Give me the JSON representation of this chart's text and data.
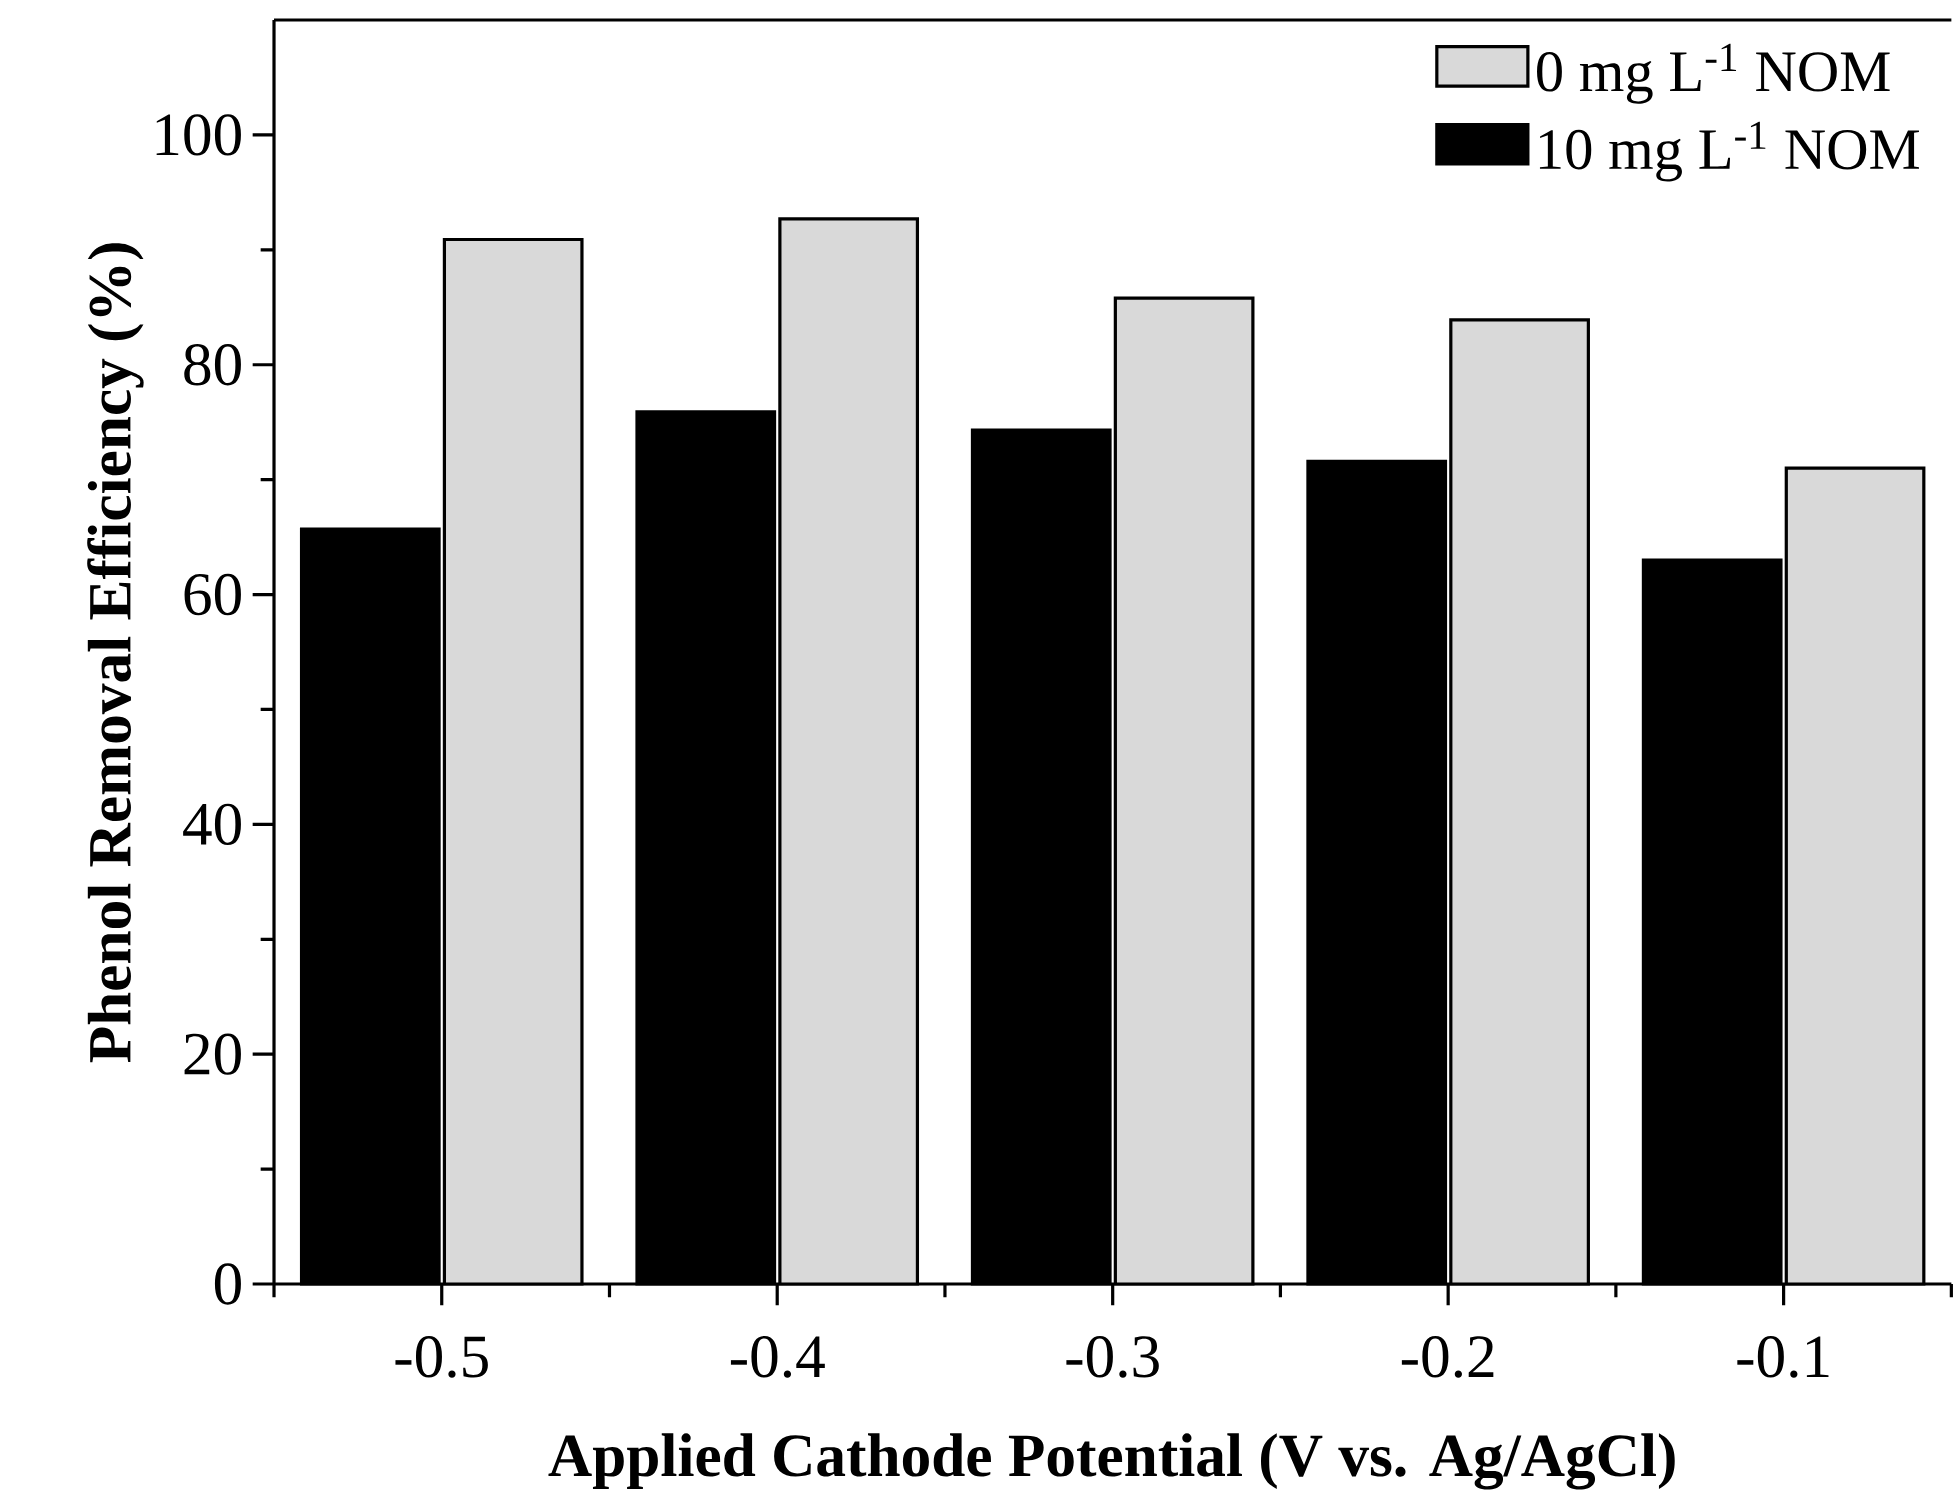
{
  "chart_data": {
    "type": "bar",
    "xlabel": "Applied Cathode Potential (V vs. Ag/AgCl)",
    "ylabel": "Phenol Removal Efficiency (%)",
    "categories": [
      "-0.5",
      "-0.4",
      "-0.3",
      "-0.2",
      "-0.1"
    ],
    "series": [
      {
        "name": "10 mg L$^{-1}$ NOM",
        "color": "#000000",
        "values": [
          65.7,
          75.9,
          74.3,
          71.6,
          63.0
        ]
      },
      {
        "name": "0 mg L$^{-1}$ NOM",
        "color": "#d9d9d9",
        "values": [
          90.9,
          92.7,
          85.8,
          83.9,
          71.0
        ]
      }
    ],
    "ylim": [
      0,
      110
    ],
    "yticks": [
      0,
      20,
      40,
      60,
      80,
      100
    ],
    "grid": false,
    "legend": "top right"
  }
}
